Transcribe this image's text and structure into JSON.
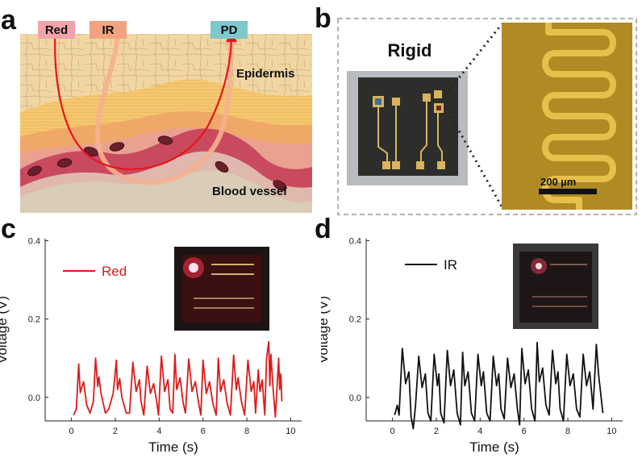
{
  "panels": {
    "a": {
      "letter": "a",
      "labels": {
        "red": "Red",
        "ir": "IR",
        "pd": "PD",
        "epidermis": "Epidermis",
        "vessel": "Blood vessel"
      },
      "colors": {
        "red_label_bg": "#f2a3a8",
        "ir_label_bg": "#f2a27e",
        "pd_label_bg": "#7ec8cc",
        "red_path": "#e8141b",
        "ir_path": "#f5b090"
      }
    },
    "b": {
      "letter": "b",
      "title": "Rigid",
      "scale_bar": "200 µm",
      "colors": {
        "electrode": "#e6c04a",
        "micro_bg": "#b08b23"
      }
    },
    "c": {
      "letter": "c",
      "chart_data": {
        "type": "line",
        "xlabel": "Time (s)",
        "ylabel": "Voltage (V)",
        "xlim": [
          -1.2,
          10.5
        ],
        "ylim": [
          -0.06,
          0.405
        ],
        "xticks": [
          "0",
          "2",
          "4",
          "6",
          "8",
          "10"
        ],
        "yticks": [
          "0.0",
          "0.2",
          "0.4"
        ],
        "legend_position": "top-left",
        "series": [
          {
            "name": "Red",
            "color": "#dd1a1a",
            "x": [
              0.1,
              0.22,
              0.33,
              0.4,
              0.55,
              0.7,
              0.85,
              1.0,
              1.1,
              1.2,
              1.25,
              1.35,
              1.55,
              1.7,
              1.9,
              2.05,
              2.1,
              2.2,
              2.3,
              2.5,
              2.65,
              2.8,
              2.95,
              3.1,
              3.17,
              3.3,
              3.45,
              3.6,
              3.75,
              3.9,
              3.97,
              4.1,
              4.25,
              4.4,
              4.5,
              4.62,
              4.72,
              4.8,
              4.95,
              5.1,
              5.2,
              5.35,
              5.5,
              5.65,
              5.8,
              5.9,
              6.0,
              6.15,
              6.3,
              6.45,
              6.6,
              6.7,
              6.8,
              6.95,
              7.1,
              7.25,
              7.4,
              7.52,
              7.6,
              7.75,
              7.9,
              8.05,
              8.2,
              8.32,
              8.4,
              8.52,
              8.6,
              8.7,
              8.82,
              8.9,
              9.0,
              9.05,
              9.1,
              9.2,
              9.3,
              9.4,
              9.45,
              9.5,
              9.55,
              9.6
            ],
            "values": [
              -0.045,
              -0.03,
              0.085,
              0.012,
              0.04,
              -0.02,
              -0.04,
              -0.01,
              0.1,
              0.028,
              0.052,
              0.01,
              -0.04,
              -0.03,
              0.01,
              0.095,
              0.02,
              0.048,
              0.0,
              -0.04,
              -0.04,
              0.09,
              0.015,
              0.045,
              -0.01,
              -0.045,
              0.08,
              0.01,
              0.035,
              -0.015,
              -0.045,
              0.105,
              0.015,
              0.045,
              -0.03,
              -0.04,
              0.11,
              0.02,
              0.05,
              -0.015,
              -0.04,
              0.098,
              0.015,
              0.04,
              -0.015,
              -0.045,
              0.095,
              0.01,
              0.04,
              -0.015,
              -0.045,
              0.1,
              0.015,
              0.045,
              -0.015,
              -0.045,
              0.108,
              0.02,
              0.05,
              -0.01,
              -0.045,
              0.095,
              0.015,
              0.04,
              -0.04,
              0.07,
              0.015,
              0.045,
              -0.045,
              0.1,
              0.142,
              0.03,
              0.11,
              0.02,
              -0.05,
              0.048,
              0.1,
              0.02,
              0.06,
              -0.01
            ]
          }
        ]
      }
    },
    "d": {
      "letter": "d",
      "chart_data": {
        "type": "line",
        "xlabel": "Time (s)",
        "ylabel": "Voltage (V)",
        "xlim": [
          -1.2,
          10.5
        ],
        "ylim": [
          -0.06,
          0.405
        ],
        "xticks": [
          "0",
          "2",
          "4",
          "6",
          "8",
          "10"
        ],
        "yticks": [
          "0.0",
          "0.2",
          "0.4"
        ],
        "legend_position": "top-left",
        "series": [
          {
            "name": "IR",
            "color": "#111111",
            "x": [
              0.1,
              0.22,
              0.3,
              0.45,
              0.6,
              0.75,
              0.85,
              0.95,
              1.05,
              1.2,
              1.35,
              1.5,
              1.62,
              1.75,
              1.9,
              2.05,
              2.12,
              2.2,
              2.35,
              2.5,
              2.65,
              2.8,
              2.95,
              3.1,
              3.2,
              3.3,
              3.45,
              3.6,
              3.75,
              3.9,
              4.05,
              4.15,
              4.3,
              4.45,
              4.6,
              4.75,
              4.85,
              4.95,
              5.1,
              5.25,
              5.4,
              5.55,
              5.7,
              5.8,
              5.9,
              6.05,
              6.2,
              6.35,
              6.5,
              6.6,
              6.7,
              6.85,
              7.0,
              7.15,
              7.3,
              7.45,
              7.55,
              7.65,
              7.8,
              7.95,
              8.1,
              8.25,
              8.4,
              8.55,
              8.7,
              8.85,
              9.0,
              9.15,
              9.3,
              9.4,
              9.5,
              9.6
            ],
            "values": [
              -0.045,
              -0.02,
              -0.045,
              0.125,
              0.035,
              0.065,
              -0.05,
              -0.08,
              -0.02,
              0.105,
              0.025,
              0.06,
              -0.04,
              -0.06,
              0.11,
              0.03,
              0.06,
              -0.04,
              -0.065,
              0.12,
              0.03,
              0.07,
              -0.04,
              -0.07,
              0.115,
              0.03,
              0.065,
              -0.04,
              -0.06,
              0.11,
              0.03,
              0.065,
              -0.04,
              -0.06,
              0.105,
              0.03,
              0.06,
              -0.03,
              -0.055,
              0.1,
              0.025,
              0.06,
              -0.03,
              -0.07,
              0.125,
              0.035,
              0.07,
              -0.03,
              -0.06,
              0.14,
              0.04,
              0.075,
              -0.02,
              -0.045,
              0.12,
              0.035,
              0.065,
              -0.03,
              -0.06,
              0.11,
              0.03,
              0.06,
              -0.03,
              -0.05,
              0.11,
              0.03,
              0.065,
              -0.03,
              0.135,
              0.06,
              0.01,
              -0.04
            ]
          }
        ]
      }
    }
  }
}
